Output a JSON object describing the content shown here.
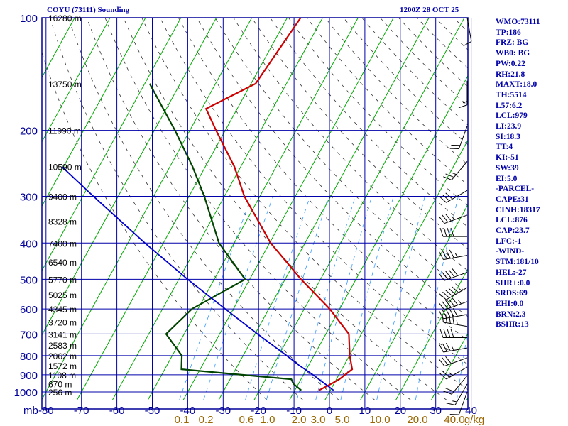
{
  "header": {
    "title": "COYU (73111) Sounding",
    "time": "1200Z 28 OCT 25"
  },
  "indices": [
    "WMO:73111",
    "TP:186",
    "FRZ: BG",
    "WB0: BG",
    "PW:0.22",
    "RH:21.8",
    "MAXT:18.0",
    "TH:5514",
    "L57:6.2",
    "LCL:979",
    "LI:23.9",
    "SI:18.3",
    "TT:4",
    "KI:-51",
    "SW:39",
    "EI:5.0",
    "-PARCEL-",
    "CAPE:31",
    "CINH:18317",
    "LCL:876",
    "CAP:23.7",
    "LFC:-1",
    "-WIND-",
    "STM:181/10",
    "HEL:-27",
    "SHR+:0.0",
    "SRDS:69",
    "EHI:0.0",
    "BRN:2.3",
    "BSHR:13"
  ],
  "colors": {
    "frame": "#000099",
    "grid": "#0000aa",
    "isotherm": "#00aa00",
    "temperature": "#cc0000",
    "dewpoint": "#004400",
    "parcel": "#0000cc",
    "dry_adiabat": "#333333",
    "mixing_ratio": "#3399ff",
    "mixing_label": "#996600",
    "wind_barb": "#000000"
  },
  "chart_data": {
    "type": "line",
    "title": "COYU (73111) Sounding",
    "x_axis": {
      "label_units": "C",
      "range": [
        -80,
        40
      ],
      "ticks": [
        "-80",
        "-70",
        "-60",
        "-50",
        "-40",
        "-30",
        "-20",
        "-10",
        "0",
        "10",
        "20",
        "30",
        "40"
      ],
      "skewed": true
    },
    "y_axis": {
      "label": "mb",
      "scale": "log",
      "range": [
        1050,
        100
      ],
      "ticks": [
        "100",
        "200",
        "300",
        "400",
        "500",
        "600",
        "700",
        "800",
        "900",
        "1000"
      ]
    },
    "height_labels": [
      {
        "p": 100,
        "label": "16280 m"
      },
      {
        "p": 150,
        "label": "13750 m"
      },
      {
        "p": 200,
        "label": "11990 m"
      },
      {
        "p": 250,
        "label": "10590 m"
      },
      {
        "p": 300,
        "label": "9400 m"
      },
      {
        "p": 350,
        "label": "8328 m"
      },
      {
        "p": 400,
        "label": "7400 m"
      },
      {
        "p": 450,
        "label": "6540 m"
      },
      {
        "p": 500,
        "label": "5770 m"
      },
      {
        "p": 550,
        "label": "5025 m"
      },
      {
        "p": 600,
        "label": "4345 m"
      },
      {
        "p": 650,
        "label": "3720 m"
      },
      {
        "p": 700,
        "label": "3141 m"
      },
      {
        "p": 750,
        "label": "2583 m"
      },
      {
        "p": 800,
        "label": "2062 m"
      },
      {
        "p": 850,
        "label": "1572 m"
      },
      {
        "p": 900,
        "label": "1108 m"
      },
      {
        "p": 950,
        "label": "670 m"
      },
      {
        "p": 1000,
        "label": "256 m"
      }
    ],
    "mixing_ratio_labels": [
      "0.1",
      "0.2",
      "0.6",
      "1.0",
      "2.0",
      "3.0",
      "5.0",
      "10.0",
      "20.0",
      "40.0",
      "g/kg"
    ],
    "series": [
      {
        "key": "temperature",
        "points": [
          {
            "p": 990,
            "t": -3.2
          },
          {
            "p": 950,
            "t": -0.7
          },
          {
            "p": 925,
            "t": 0.8
          },
          {
            "p": 870,
            "t": 2.9
          },
          {
            "p": 800,
            "t": 0.1
          },
          {
            "p": 700,
            "t": -3.5
          },
          {
            "p": 600,
            "t": -12.8
          },
          {
            "p": 500,
            "t": -25.5
          },
          {
            "p": 400,
            "t": -39.7
          },
          {
            "p": 300,
            "t": -54.4
          },
          {
            "p": 250,
            "t": -61.8
          },
          {
            "p": 200,
            "t": -72.6
          },
          {
            "p": 175,
            "t": -78.8
          },
          {
            "p": 150,
            "t": -68.7
          },
          {
            "p": 100,
            "t": -66.2
          }
        ]
      },
      {
        "key": "dewpoint",
        "points": [
          {
            "p": 990,
            "t": -8.2
          },
          {
            "p": 950,
            "t": -11.5
          },
          {
            "p": 925,
            "t": -12.7
          },
          {
            "p": 870,
            "t": -45.3
          },
          {
            "p": 800,
            "t": -47.3
          },
          {
            "p": 700,
            "t": -55.1
          },
          {
            "p": 600,
            "t": -51.7
          },
          {
            "p": 500,
            "t": -41.3
          },
          {
            "p": 400,
            "t": -54.3
          },
          {
            "p": 300,
            "t": -65.7
          },
          {
            "p": 250,
            "t": -73.6
          },
          {
            "p": 200,
            "t": -84.2
          },
          {
            "p": 150,
            "t": -98.6
          }
        ]
      },
      {
        "key": "parcel",
        "points": [
          {
            "p": 990,
            "t": 0.9
          },
          {
            "p": 900,
            "t": -7.3
          },
          {
            "p": 850,
            "t": -12.6
          },
          {
            "p": 800,
            "t": -17.7
          },
          {
            "p": 700,
            "t": -29.3
          },
          {
            "p": 600,
            "t": -42.3
          },
          {
            "p": 500,
            "t": -57.5
          },
          {
            "p": 400,
            "t": -75.2
          },
          {
            "p": 300,
            "t": -97.0
          },
          {
            "p": 250,
            "t": -110.5
          }
        ]
      }
    ],
    "winds_dir": [
      200,
      210,
      220,
      240,
      250,
      260,
      270,
      280,
      260,
      250,
      240,
      250,
      260,
      270,
      250,
      240,
      220,
      200,
      180,
      170
    ],
    "winds_speed": [
      10,
      15,
      20,
      25,
      30,
      35,
      40,
      45,
      50,
      55,
      55,
      50,
      45,
      40,
      35,
      30,
      25,
      20,
      15,
      10
    ]
  }
}
